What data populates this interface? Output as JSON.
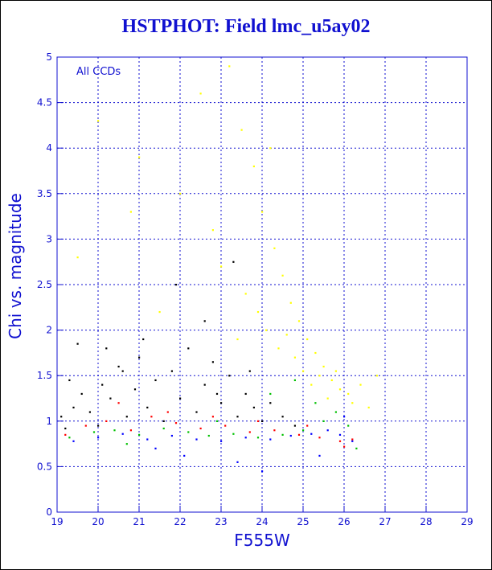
{
  "chart_data": {
    "type": "scatter",
    "title": "HSTPHOT: Field lmc_u5ay02",
    "xlabel": "F555W",
    "ylabel": "Chi vs. magnitude",
    "annotation": "All CCDs",
    "xlim": [
      19,
      29
    ],
    "ylim": [
      0,
      5
    ],
    "xticks": [
      "19",
      "20",
      "21",
      "22",
      "23",
      "24",
      "25",
      "26",
      "27",
      "28",
      "29"
    ],
    "yticks": [
      "0",
      "0.5",
      "1",
      "1.5",
      "2",
      "2.5",
      "3",
      "3.5",
      "4",
      "4.5",
      "5"
    ],
    "grid": true,
    "series": [
      {
        "color": "#000000",
        "description_points": [
          [
            19.1,
            1.05
          ],
          [
            19.2,
            0.92
          ],
          [
            19.4,
            1.15
          ],
          [
            19.6,
            1.3
          ],
          [
            19.8,
            1.1
          ],
          [
            20.0,
            0.95
          ],
          [
            20.1,
            1.4
          ],
          [
            20.3,
            1.25
          ],
          [
            20.5,
            1.6
          ],
          [
            20.7,
            1.05
          ],
          [
            20.9,
            1.35
          ],
          [
            21.0,
            1.7
          ],
          [
            21.2,
            1.15
          ],
          [
            21.4,
            1.45
          ],
          [
            21.6,
            1.0
          ],
          [
            21.8,
            1.55
          ],
          [
            22.0,
            1.25
          ],
          [
            22.2,
            1.8
          ],
          [
            22.4,
            1.1
          ],
          [
            22.6,
            1.4
          ],
          [
            22.8,
            1.65
          ],
          [
            23.0,
            1.2
          ],
          [
            23.2,
            1.5
          ],
          [
            23.4,
            1.05
          ],
          [
            23.6,
            1.3
          ],
          [
            23.8,
            1.15
          ],
          [
            24.0,
            1.0
          ],
          [
            24.2,
            1.2
          ],
          [
            24.5,
            1.05
          ],
          [
            24.8,
            0.95
          ],
          [
            19.5,
            1.85
          ],
          [
            20.2,
            1.8
          ],
          [
            21.1,
            1.9
          ],
          [
            22.6,
            2.1
          ],
          [
            23.3,
            2.75
          ],
          [
            21.9,
            2.5
          ],
          [
            20.6,
            1.55
          ],
          [
            19.3,
            1.45
          ],
          [
            22.9,
            1.3
          ],
          [
            23.7,
            1.55
          ]
        ]
      },
      {
        "color": "#ff0000",
        "description_points": [
          [
            19.2,
            0.85
          ],
          [
            19.7,
            0.95
          ],
          [
            20.2,
            1.0
          ],
          [
            20.8,
            0.9
          ],
          [
            21.3,
            1.05
          ],
          [
            21.9,
            0.98
          ],
          [
            22.5,
            0.92
          ],
          [
            23.1,
            0.95
          ],
          [
            23.7,
            0.88
          ],
          [
            24.3,
            0.9
          ],
          [
            24.9,
            0.85
          ],
          [
            25.4,
            0.82
          ],
          [
            25.9,
            0.78
          ],
          [
            26.2,
            0.8
          ],
          [
            20.5,
            1.2
          ],
          [
            21.7,
            1.1
          ],
          [
            22.8,
            1.05
          ],
          [
            23.9,
            1.0
          ],
          [
            25.1,
            0.95
          ],
          [
            26.0,
            0.72
          ]
        ]
      },
      {
        "color": "#00c000",
        "description_points": [
          [
            19.3,
            0.82
          ],
          [
            19.9,
            0.88
          ],
          [
            20.4,
            0.9
          ],
          [
            21.0,
            0.85
          ],
          [
            21.6,
            0.92
          ],
          [
            22.2,
            0.88
          ],
          [
            22.7,
            0.84
          ],
          [
            23.3,
            0.86
          ],
          [
            23.9,
            0.82
          ],
          [
            24.5,
            0.85
          ],
          [
            25.0,
            0.9
          ],
          [
            25.5,
            1.0
          ],
          [
            25.8,
            1.1
          ],
          [
            26.1,
            0.95
          ],
          [
            24.2,
            1.3
          ],
          [
            24.8,
            1.45
          ],
          [
            25.3,
            1.2
          ],
          [
            26.3,
            0.7
          ],
          [
            20.7,
            0.75
          ],
          [
            22.9,
            1.0
          ]
        ]
      },
      {
        "color": "#0000ff",
        "description_points": [
          [
            19.4,
            0.78
          ],
          [
            20.0,
            0.82
          ],
          [
            20.6,
            0.86
          ],
          [
            21.2,
            0.8
          ],
          [
            21.8,
            0.84
          ],
          [
            22.4,
            0.8
          ],
          [
            23.0,
            0.78
          ],
          [
            23.6,
            0.82
          ],
          [
            24.2,
            0.8
          ],
          [
            24.7,
            0.84
          ],
          [
            25.2,
            0.86
          ],
          [
            25.6,
            0.9
          ],
          [
            25.9,
            0.85
          ],
          [
            26.2,
            0.78
          ],
          [
            24.0,
            0.45
          ],
          [
            23.4,
            0.55
          ],
          [
            25.4,
            0.62
          ],
          [
            22.1,
            0.62
          ],
          [
            21.4,
            0.7
          ],
          [
            26.0,
            1.05
          ]
        ]
      },
      {
        "color": "#ffff00",
        "description_points": [
          [
            23.2,
            4.9
          ],
          [
            23.5,
            4.2
          ],
          [
            23.8,
            3.8
          ],
          [
            24.0,
            3.3
          ],
          [
            24.3,
            2.9
          ],
          [
            24.5,
            2.6
          ],
          [
            24.7,
            2.3
          ],
          [
            24.9,
            2.1
          ],
          [
            25.1,
            1.9
          ],
          [
            25.3,
            1.75
          ],
          [
            25.5,
            1.6
          ],
          [
            25.7,
            1.45
          ],
          [
            25.9,
            1.35
          ],
          [
            26.1,
            1.3
          ],
          [
            26.4,
            1.4
          ],
          [
            26.8,
            1.5
          ],
          [
            22.8,
            3.1
          ],
          [
            23.0,
            2.7
          ],
          [
            23.6,
            2.4
          ],
          [
            24.1,
            2.0
          ],
          [
            24.4,
            1.8
          ],
          [
            24.8,
            1.7
          ],
          [
            25.0,
            1.55
          ],
          [
            25.2,
            1.4
          ],
          [
            25.6,
            1.25
          ],
          [
            20.0,
            4.3
          ],
          [
            21.0,
            3.9
          ],
          [
            19.5,
            2.8
          ],
          [
            20.8,
            3.3
          ],
          [
            22.5,
            4.6
          ],
          [
            24.2,
            4.0
          ],
          [
            23.9,
            2.2
          ],
          [
            25.4,
            1.5
          ],
          [
            26.2,
            1.2
          ],
          [
            22.0,
            3.5
          ],
          [
            21.5,
            2.2
          ],
          [
            23.4,
            1.9
          ],
          [
            24.6,
            1.95
          ],
          [
            25.8,
            1.55
          ],
          [
            26.6,
            1.15
          ]
        ]
      }
    ]
  }
}
